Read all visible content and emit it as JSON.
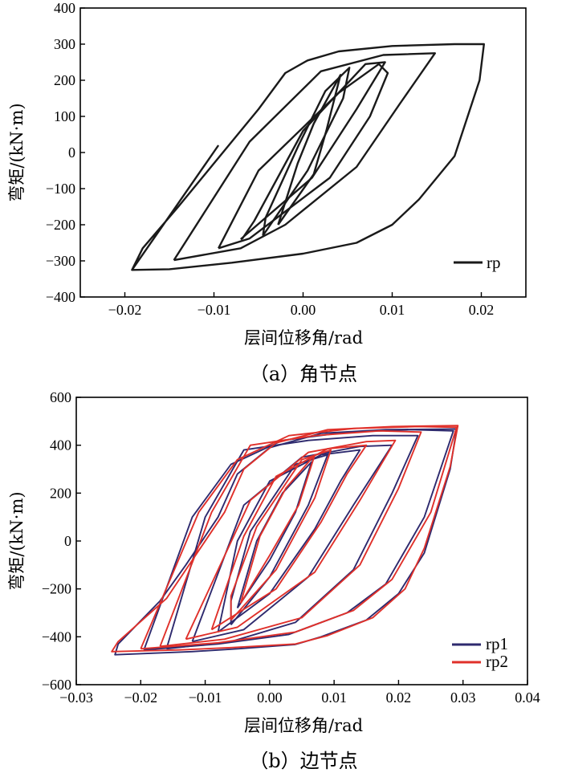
{
  "chart_data": [
    {
      "type": "line",
      "xlabel": "层间位移角/rad",
      "ylabel": "弯矩/(kN·m)",
      "caption": "（a）角节点",
      "xlim": [
        -0.025,
        0.025
      ],
      "ylim": [
        -400,
        400
      ],
      "xticks": [
        -0.02,
        -0.01,
        0.0,
        0.01,
        0.02
      ],
      "xtick_labels": [
        "−0.02",
        "−0.01",
        "0.00",
        "0.01",
        "0.02"
      ],
      "yticks": [
        -400,
        -300,
        -200,
        -100,
        0,
        100,
        200,
        300,
        400
      ],
      "ytick_labels": [
        "−400",
        "−300",
        "−200",
        "−100",
        "0",
        "100",
        "200",
        "300",
        "400"
      ],
      "legend_position": "bottom-right",
      "series": [
        {
          "name": "rp",
          "color": "#1a1a1a",
          "loops": [
            [
              [
                -0.0028,
                -200
              ],
              [
                0.0012,
                -60
              ],
              [
                0.0026,
                60
              ],
              [
                0.0042,
                215
              ],
              [
                0.0012,
                80
              ],
              [
                -0.0006,
                -30
              ],
              [
                -0.0028,
                -200
              ]
            ],
            [
              [
                -0.0045,
                -230
              ],
              [
                0.0005,
                -50
              ],
              [
                0.0045,
                150
              ],
              [
                0.0052,
                235
              ],
              [
                0.0025,
                170
              ],
              [
                -0.0005,
                20
              ],
              [
                -0.0042,
                -180
              ],
              [
                -0.0045,
                -230
              ]
            ],
            [
              [
                -0.007,
                -240
              ],
              [
                0.001,
                -70
              ],
              [
                0.006,
                120
              ],
              [
                0.0092,
                250
              ],
              [
                0.007,
                245
              ],
              [
                0.0,
                60
              ],
              [
                -0.0055,
                -190
              ],
              [
                -0.0068,
                -238
              ],
              [
                -0.007,
                -240
              ]
            ],
            [
              [
                -0.0095,
                -265
              ],
              [
                -0.006,
                -238
              ],
              [
                0.003,
                -70
              ],
              [
                0.0075,
                100
              ],
              [
                0.0095,
                220
              ],
              [
                0.0085,
                245
              ],
              [
                0.004,
                165
              ],
              [
                -0.005,
                -50
              ],
              [
                -0.0095,
                -265
              ]
            ],
            [
              [
                -0.0145,
                -298
              ],
              [
                -0.007,
                -265
              ],
              [
                -0.002,
                -200
              ],
              [
                0.006,
                -40
              ],
              [
                0.011,
                140
              ],
              [
                0.0148,
                275
              ],
              [
                0.009,
                270
              ],
              [
                0.002,
                225
              ],
              [
                -0.006,
                30
              ],
              [
                -0.0145,
                -298
              ]
            ]
          ],
          "envelope": [
            [
              -0.0095,
              20
            ],
            [
              -0.0192,
              -325
            ],
            [
              -0.015,
              -323
            ],
            [
              -0.008,
              -305
            ],
            [
              0.0,
              -280
            ],
            [
              0.006,
              -250
            ],
            [
              0.01,
              -200
            ],
            [
              0.013,
              -130
            ],
            [
              0.017,
              -10
            ],
            [
              0.0198,
              200
            ],
            [
              0.0203,
              300
            ],
            [
              0.017,
              300
            ],
            [
              0.01,
              295
            ],
            [
              0.004,
              280
            ],
            [
              0.0005,
              255
            ],
            [
              -0.002,
              220
            ],
            [
              -0.005,
              120
            ],
            [
              -0.01,
              -30
            ],
            [
              -0.014,
              -150
            ],
            [
              -0.018,
              -265
            ],
            [
              -0.0192,
              -325
            ]
          ]
        }
      ]
    },
    {
      "type": "line",
      "xlabel": "层间位移角/rad",
      "ylabel": "弯矩/(kN·m)",
      "caption": "（b）边节点",
      "xlim": [
        -0.03,
        0.04
      ],
      "ylim": [
        -600,
        600
      ],
      "xticks": [
        -0.03,
        -0.02,
        -0.01,
        0.0,
        0.01,
        0.02,
        0.03,
        0.04
      ],
      "xtick_labels": [
        "−0.03",
        "−0.02",
        "−0.01",
        "0.00",
        "0.01",
        "0.02",
        "0.03",
        "0.04"
      ],
      "yticks": [
        -600,
        -400,
        -200,
        0,
        200,
        400,
        600
      ],
      "ytick_labels": [
        "−600",
        "−400",
        "−200",
        "0",
        "200",
        "400",
        "600"
      ],
      "legend_position": "bottom-right",
      "series": [
        {
          "name": "rp1",
          "color": "#2e2a6e",
          "loops": [
            [
              [
                -0.005,
                -280
              ],
              [
                0.0,
                -80
              ],
              [
                0.004,
                120
              ],
              [
                0.0065,
                330
              ],
              [
                0.002,
                200
              ],
              [
                -0.002,
                0
              ],
              [
                -0.005,
                -280
              ]
            ],
            [
              [
                -0.006,
                -350
              ],
              [
                0.0,
                -150
              ],
              [
                0.006,
                150
              ],
              [
                0.009,
                360
              ],
              [
                0.004,
                320
              ],
              [
                -0.003,
                40
              ],
              [
                -0.006,
                -250
              ],
              [
                -0.006,
                -350
              ]
            ],
            [
              [
                -0.008,
                -380
              ],
              [
                0.0,
                -220
              ],
              [
                0.007,
                50
              ],
              [
                0.011,
                250
              ],
              [
                0.014,
                380
              ],
              [
                0.008,
                360
              ],
              [
                0.0,
                250
              ],
              [
                -0.005,
                0
              ],
              [
                -0.008,
                -380
              ]
            ],
            [
              [
                -0.012,
                -420
              ],
              [
                -0.004,
                -370
              ],
              [
                0.006,
                -150
              ],
              [
                0.013,
                150
              ],
              [
                0.019,
                400
              ],
              [
                0.014,
                395
              ],
              [
                0.005,
                350
              ],
              [
                -0.004,
                150
              ],
              [
                -0.012,
                -420
              ]
            ],
            [
              [
                -0.016,
                -450
              ],
              [
                -0.006,
                -420
              ],
              [
                0.004,
                -340
              ],
              [
                0.013,
                -120
              ],
              [
                0.019,
                200
              ],
              [
                0.023,
                440
              ],
              [
                0.016,
                440
              ],
              [
                0.006,
                420
              ],
              [
                -0.004,
                380
              ],
              [
                -0.01,
                100
              ],
              [
                -0.016,
                -450
              ]
            ],
            [
              [
                -0.0195,
                -455
              ],
              [
                -0.008,
                -430
              ],
              [
                0.003,
                -390
              ],
              [
                0.012,
                -300
              ],
              [
                0.018,
                -180
              ],
              [
                0.024,
                100
              ],
              [
                0.0285,
                460
              ],
              [
                0.022,
                465
              ],
              [
                0.012,
                455
              ],
              [
                0.002,
                420
              ],
              [
                -0.006,
                320
              ],
              [
                -0.012,
                100
              ],
              [
                -0.0195,
                -455
              ]
            ],
            [
              [
                0.004,
                -432
              ],
              [
                -0.005,
                -450
              ],
              [
                -0.012,
                -462
              ],
              [
                -0.024,
                -475
              ],
              [
                -0.0235,
                -430
              ],
              [
                -0.017,
                -250
              ],
              [
                -0.013,
                -100
              ],
              [
                -0.008,
                100
              ],
              [
                -0.005,
                280
              ],
              [
                0.0,
                390
              ],
              [
                0.008,
                450
              ],
              [
                0.018,
                465
              ],
              [
                0.029,
                468
              ],
              [
                0.028,
                300
              ],
              [
                0.024,
                -50
              ],
              [
                0.02,
                -220
              ],
              [
                0.015,
                -330
              ],
              [
                0.008,
                -400
              ],
              [
                0.004,
                -432
              ]
            ]
          ]
        },
        {
          "name": "rp2",
          "color": "#e0302a",
          "loops": [
            [
              [
                -0.0045,
                -260
              ],
              [
                0.0,
                -60
              ],
              [
                0.0045,
                150
              ],
              [
                0.007,
                360
              ],
              [
                0.0025,
                220
              ],
              [
                -0.0015,
                20
              ],
              [
                -0.0045,
                -260
              ]
            ],
            [
              [
                -0.006,
                -330
              ],
              [
                0.001,
                -120
              ],
              [
                0.007,
                180
              ],
              [
                0.0095,
                380
              ],
              [
                0.005,
                340
              ],
              [
                -0.002,
                60
              ],
              [
                -0.006,
                -230
              ],
              [
                -0.006,
                -330
              ]
            ],
            [
              [
                -0.009,
                -370
              ],
              [
                0.001,
                -200
              ],
              [
                0.008,
                80
              ],
              [
                0.012,
                280
              ],
              [
                0.015,
                400
              ],
              [
                0.009,
                385
              ],
              [
                0.001,
                270
              ],
              [
                -0.004,
                20
              ],
              [
                -0.009,
                -370
              ]
            ],
            [
              [
                -0.013,
                -410
              ],
              [
                -0.005,
                -360
              ],
              [
                0.007,
                -130
              ],
              [
                0.014,
                170
              ],
              [
                0.0195,
                420
              ],
              [
                0.015,
                415
              ],
              [
                0.006,
                370
              ],
              [
                -0.003,
                170
              ],
              [
                -0.013,
                -410
              ]
            ],
            [
              [
                -0.017,
                -440
              ],
              [
                -0.007,
                -410
              ],
              [
                0.005,
                -320
              ],
              [
                0.014,
                -100
              ],
              [
                0.02,
                220
              ],
              [
                0.0235,
                455
              ],
              [
                0.017,
                460
              ],
              [
                0.007,
                440
              ],
              [
                -0.003,
                400
              ],
              [
                -0.009,
                120
              ],
              [
                -0.017,
                -440
              ]
            ],
            [
              [
                -0.02,
                -450
              ],
              [
                -0.008,
                -425
              ],
              [
                0.004,
                -380
              ],
              [
                0.013,
                -290
              ],
              [
                0.019,
                -160
              ],
              [
                0.025,
                120
              ],
              [
                0.029,
                475
              ],
              [
                0.023,
                478
              ],
              [
                0.013,
                470
              ],
              [
                0.003,
                440
              ],
              [
                -0.005,
                340
              ],
              [
                -0.011,
                120
              ],
              [
                -0.02,
                -450
              ]
            ],
            [
              [
                0.004,
                -430
              ],
              [
                -0.006,
                -445
              ],
              [
                -0.014,
                -455
              ],
              [
                -0.0245,
                -462
              ],
              [
                -0.0235,
                -420
              ],
              [
                -0.016,
                -240
              ],
              [
                -0.012,
                -80
              ],
              [
                -0.007,
                120
              ],
              [
                -0.004,
                300
              ],
              [
                0.001,
                410
              ],
              [
                0.009,
                465
              ],
              [
                0.019,
                478
              ],
              [
                0.0292,
                482
              ],
              [
                0.028,
                310
              ],
              [
                0.024,
                -30
              ],
              [
                0.021,
                -200
              ],
              [
                0.016,
                -320
              ],
              [
                0.009,
                -395
              ],
              [
                0.004,
                -430
              ]
            ]
          ]
        }
      ]
    }
  ]
}
